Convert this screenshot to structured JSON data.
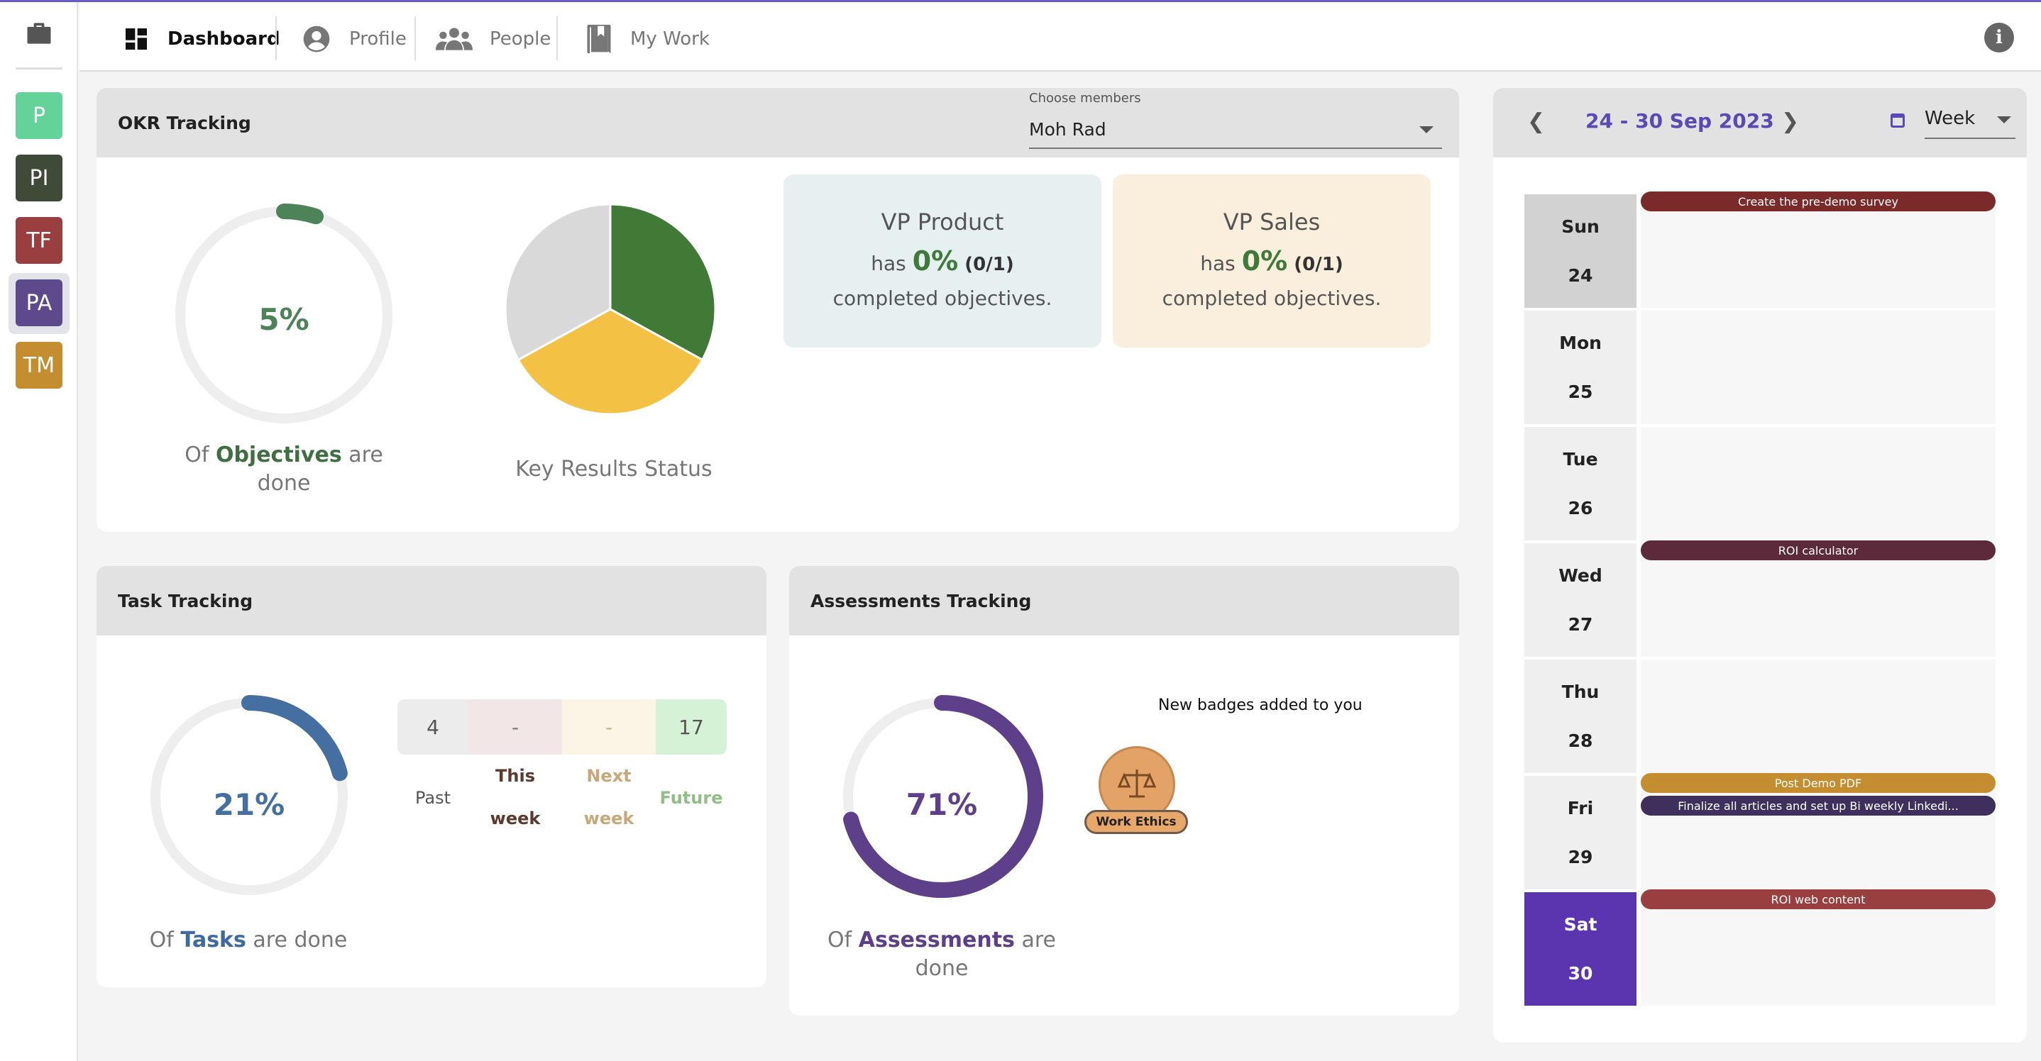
{
  "nav": {
    "items": [
      {
        "label": "Dashboard",
        "icon": "dashboard-icon",
        "active": true
      },
      {
        "label": "Profile",
        "icon": "profile-icon"
      },
      {
        "label": "People",
        "icon": "people-icon"
      },
      {
        "label": "My Work",
        "icon": "bookmark-icon"
      }
    ]
  },
  "workspaces": [
    {
      "label": "P",
      "color": "#63d39a"
    },
    {
      "label": "PI",
      "color": "#3f4a38"
    },
    {
      "label": "TF",
      "color": "#9a3f3f"
    },
    {
      "label": "PA",
      "color": "#5d4a8c",
      "selected": true
    },
    {
      "label": "TM",
      "color": "#c48d2f"
    }
  ],
  "okr": {
    "title": "OKR Tracking",
    "members_label": "Choose members",
    "members_value": "Moh Rad",
    "objectives_pct": "5%",
    "objectives_value": 0.05,
    "objectives_caption_pre": "Of ",
    "objectives_caption_bold": "Objectives",
    "objectives_caption_post": " are",
    "objectives_caption_line2": "done",
    "kr_caption": "Key Results Status",
    "vp": [
      {
        "name": "VP Product",
        "has": "has ",
        "pct": "0%",
        "frac": " (0/1)",
        "line3": "completed objectives.",
        "bg": "#e6f0f1"
      },
      {
        "name": "VP Sales",
        "has": "has ",
        "pct": "0%",
        "frac": " (0/1)",
        "line3": "completed objectives.",
        "bg": "#faefdc"
      }
    ]
  },
  "chart_data": {
    "type": "pie",
    "values": [
      0.33,
      0.34,
      0.33
    ],
    "colors": [
      "#417a37",
      "#f3c245",
      "#d9d9d9"
    ]
  },
  "task": {
    "title": "Task Tracking",
    "pct": "21%",
    "value": 0.21,
    "caption_pre": "Of ",
    "caption_bold": "Tasks",
    "caption_post": " are done",
    "stats": [
      {
        "value": "4",
        "label": "Past",
        "bg": "#ececec",
        "fg": "#555",
        "lfg": "#555"
      },
      {
        "value": "-",
        "label": "This week",
        "bg": "#f2e6e6",
        "fg": "#777",
        "lfg": "#5c3a2e"
      },
      {
        "value": "-",
        "label": "Next week",
        "bg": "#fbf5e6",
        "fg": "#c8b08a",
        "lfg": "#c8a87a"
      },
      {
        "value": "17",
        "label": "Future",
        "bg": "#d6f2d6",
        "fg": "#555",
        "lfg": "#8fbf85"
      }
    ]
  },
  "assess": {
    "title": "Assessments Tracking",
    "pct": "71%",
    "value": 0.71,
    "caption_pre": "Of ",
    "caption_bold": "Assessments",
    "caption_post": " are",
    "caption_line2": "done",
    "badges_title": "New badges added to you",
    "badge_label": "Work Ethics"
  },
  "calendar": {
    "range": "24 - 30 Sep 2023",
    "view": "Week",
    "days": [
      {
        "name": "Sun",
        "num": "24",
        "state": "past"
      },
      {
        "name": "Mon",
        "num": "25"
      },
      {
        "name": "Tue",
        "num": "26"
      },
      {
        "name": "Wed",
        "num": "27"
      },
      {
        "name": "Thu",
        "num": "28"
      },
      {
        "name": "Fri",
        "num": "29"
      },
      {
        "name": "Sat",
        "num": "30",
        "state": "today"
      }
    ],
    "events": [
      {
        "day": 0,
        "slot": 0,
        "label": "Create the pre-demo survey",
        "color": "#7b2a2a"
      },
      {
        "day": 3,
        "slot": 0,
        "label": "ROI calculator",
        "color": "#5c2a3a"
      },
      {
        "day": 5,
        "slot": 0,
        "label": "Post Demo PDF",
        "color": "#c48d2f"
      },
      {
        "day": 5,
        "slot": 1,
        "label": "Finalize all articles and set up Bi weekly Linkedi...",
        "color": "#3f2f5c"
      },
      {
        "day": 6,
        "slot": 0,
        "label": "ROI web content",
        "color": "#9a3f3f"
      }
    ]
  }
}
